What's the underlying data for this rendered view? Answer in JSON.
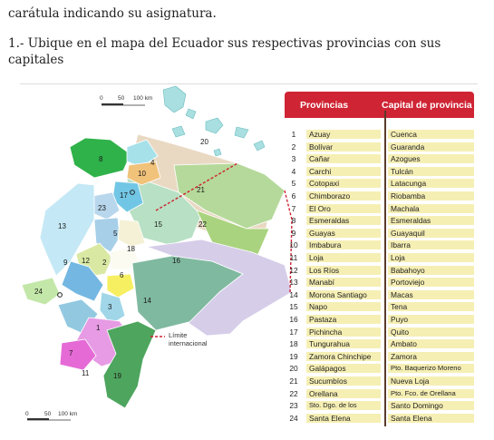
{
  "text": {
    "top_line": "carátula indicando su asignatura.",
    "question_line1": "1.- Ubique en el mapa del Ecuador sus respectivas provincias con sus",
    "question_line2": "capitales"
  },
  "map": {
    "scale_top": {
      "zero": "0",
      "mid": "50",
      "end": "100 km"
    },
    "scale_bottom": {
      "zero": "0",
      "mid": "50",
      "end": "100 km"
    },
    "legend_limit_line1": "Límite",
    "legend_limit_line2": "internacional",
    "region_numbers": [
      "1",
      "2",
      "3",
      "4",
      "5",
      "6",
      "7",
      "8",
      "9",
      "10",
      "11",
      "12",
      "13",
      "14",
      "15",
      "16",
      "17",
      "18",
      "19",
      "20",
      "21",
      "22",
      "23",
      "24"
    ],
    "colors": {
      "sea": "#ffffff",
      "accent": "#cf2434",
      "row_bg": "#f6efb4"
    }
  },
  "table": {
    "header_province": "Provincias",
    "header_capital": "Capital de provincia",
    "rows": [
      {
        "n": "1",
        "province": "Azuay",
        "capital": "Cuenca"
      },
      {
        "n": "2",
        "province": "Bolívar",
        "capital": "Guaranda"
      },
      {
        "n": "3",
        "province": "Cañar",
        "capital": "Azogues"
      },
      {
        "n": "4",
        "province": "Carchi",
        "capital": "Tulcán"
      },
      {
        "n": "5",
        "province": "Cotopaxi",
        "capital": "Latacunga"
      },
      {
        "n": "6",
        "province": "Chimborazo",
        "capital": "Riobamba"
      },
      {
        "n": "7",
        "province": "El Oro",
        "capital": "Machala"
      },
      {
        "n": "8",
        "province": "Esmeraldas",
        "capital": "Esmeraldas"
      },
      {
        "n": "9",
        "province": "Guayas",
        "capital": "Guayaquil"
      },
      {
        "n": "10",
        "province": "Imbabura",
        "capital": "Ibarra"
      },
      {
        "n": "11",
        "province": "Loja",
        "capital": "Loja"
      },
      {
        "n": "12",
        "province": "Los Ríos",
        "capital": "Babahoyo"
      },
      {
        "n": "13",
        "province": "Manabí",
        "capital": "Portoviejo"
      },
      {
        "n": "14",
        "province": "Morona Santiago",
        "capital": "Macas"
      },
      {
        "n": "15",
        "province": "Napo",
        "capital": "Tena"
      },
      {
        "n": "16",
        "province": "Pastaza",
        "capital": "Puyo"
      },
      {
        "n": "17",
        "province": "Pichincha",
        "capital": "Quito"
      },
      {
        "n": "18",
        "province": "Tungurahua",
        "capital": "Ambato"
      },
      {
        "n": "19",
        "province": "Zamora Chinchipe",
        "capital": "Zamora"
      },
      {
        "n": "20",
        "province": "Galápagos",
        "capital": "Pto. Baquerizo Moreno"
      },
      {
        "n": "21",
        "province": "Sucumbíos",
        "capital": "Nueva Loja"
      },
      {
        "n": "22",
        "province": "Orellana",
        "capital": "Pto. Fco. de Orellana"
      },
      {
        "n": "23",
        "province": "Sto. Dgo. de los Tsáchilas",
        "capital": "Santo Domingo"
      },
      {
        "n": "24",
        "province": "Santa Elena",
        "capital": "Santa Elena"
      }
    ]
  }
}
